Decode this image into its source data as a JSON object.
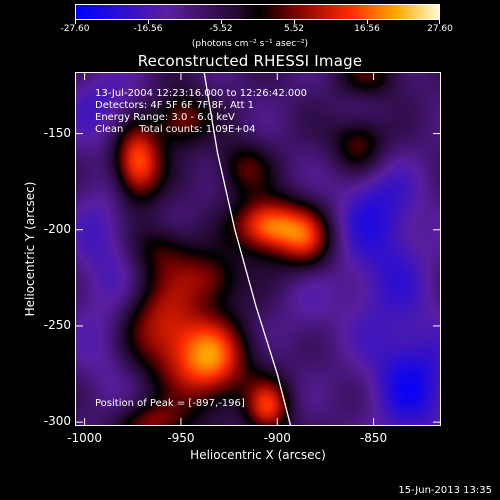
{
  "colorbar": {
    "ticks": [
      "-27.60",
      "-16.56",
      "-5.52",
      "5.52",
      "16.56",
      "27.60"
    ],
    "units": "(photons cm⁻² s⁻¹ asec⁻²)"
  },
  "title": "Reconstructed RHESSI Image",
  "info": {
    "time": "13-Jul-2004 12:23:16.000 to 12:26:42.000",
    "detectors": "Detectors: 4F 5F 6F 7F 8F, Att 1",
    "energy": "Energy Range: 3.0 - 6.0 keV",
    "clean": "Clean     Total counts: 1.09E+04"
  },
  "peak": "Position of Peak = [-897,-196]",
  "axes": {
    "xlabel": "Heliocentric X (arcsec)",
    "ylabel": "Heliocentric Y (arcsec)",
    "xticks": [
      "-1000",
      "-950",
      "-900",
      "-850"
    ],
    "yticks": [
      "-150",
      "-200",
      "-250",
      "-300"
    ]
  },
  "timestamp": "15-Jun-2013 13:35",
  "chart_data": {
    "type": "heatmap",
    "title": "Reconstructed RHESSI Image",
    "xlabel": "Heliocentric X (arcsec)",
    "ylabel": "Heliocentric Y (arcsec)",
    "xlim": [
      -1005,
      -815
    ],
    "ylim": [
      -302,
      -118
    ],
    "zlim": [
      -27.6,
      27.6
    ],
    "peak": [
      -897,
      -196
    ],
    "blobs": [
      {
        "x": -973,
        "y": -165,
        "amp": 27,
        "sx": 9,
        "sy": 14
      },
      {
        "x": -950,
        "y": -142,
        "amp": 16,
        "sx": 10,
        "sy": 10
      },
      {
        "x": -905,
        "y": -198,
        "amp": 27.6,
        "sx": 12,
        "sy": 10
      },
      {
        "x": -885,
        "y": -205,
        "amp": 18,
        "sx": 10,
        "sy": 12
      },
      {
        "x": -918,
        "y": -168,
        "amp": 12,
        "sx": 10,
        "sy": 10
      },
      {
        "x": -858,
        "y": -155,
        "amp": 14,
        "sx": 10,
        "sy": 10
      },
      {
        "x": -852,
        "y": -120,
        "amp": 10,
        "sx": 12,
        "sy": 8
      },
      {
        "x": -935,
        "y": -268,
        "amp": 26,
        "sx": 14,
        "sy": 16
      },
      {
        "x": -960,
        "y": -250,
        "amp": 18,
        "sx": 14,
        "sy": 18
      },
      {
        "x": -965,
        "y": -300,
        "amp": 14,
        "sx": 14,
        "sy": 8
      },
      {
        "x": -905,
        "y": -292,
        "amp": 20,
        "sx": 8,
        "sy": 10
      },
      {
        "x": -935,
        "y": -225,
        "amp": 14,
        "sx": 12,
        "sy": 10
      },
      {
        "x": -960,
        "y": -210,
        "amp": 10,
        "sx": 12,
        "sy": 10
      },
      {
        "x": -990,
        "y": -210,
        "amp": -8,
        "sx": 12,
        "sy": 30
      },
      {
        "x": -990,
        "y": -270,
        "amp": -4,
        "sx": 10,
        "sy": 20
      },
      {
        "x": -845,
        "y": -215,
        "amp": -10,
        "sx": 18,
        "sy": 30
      },
      {
        "x": -830,
        "y": -280,
        "amp": -14,
        "sx": 16,
        "sy": 22
      },
      {
        "x": -850,
        "y": -185,
        "amp": -6,
        "sx": 14,
        "sy": 14
      },
      {
        "x": -885,
        "y": -240,
        "amp": -4,
        "sx": 10,
        "sy": 14
      },
      {
        "x": -990,
        "y": -135,
        "amp": -8,
        "sx": 14,
        "sy": 14
      }
    ],
    "limb": [
      [
        -938,
        -118
      ],
      [
        -931,
        -160
      ],
      [
        -922,
        -200
      ],
      [
        -911,
        -240
      ],
      [
        -900,
        -275
      ],
      [
        -893,
        -302
      ]
    ]
  }
}
